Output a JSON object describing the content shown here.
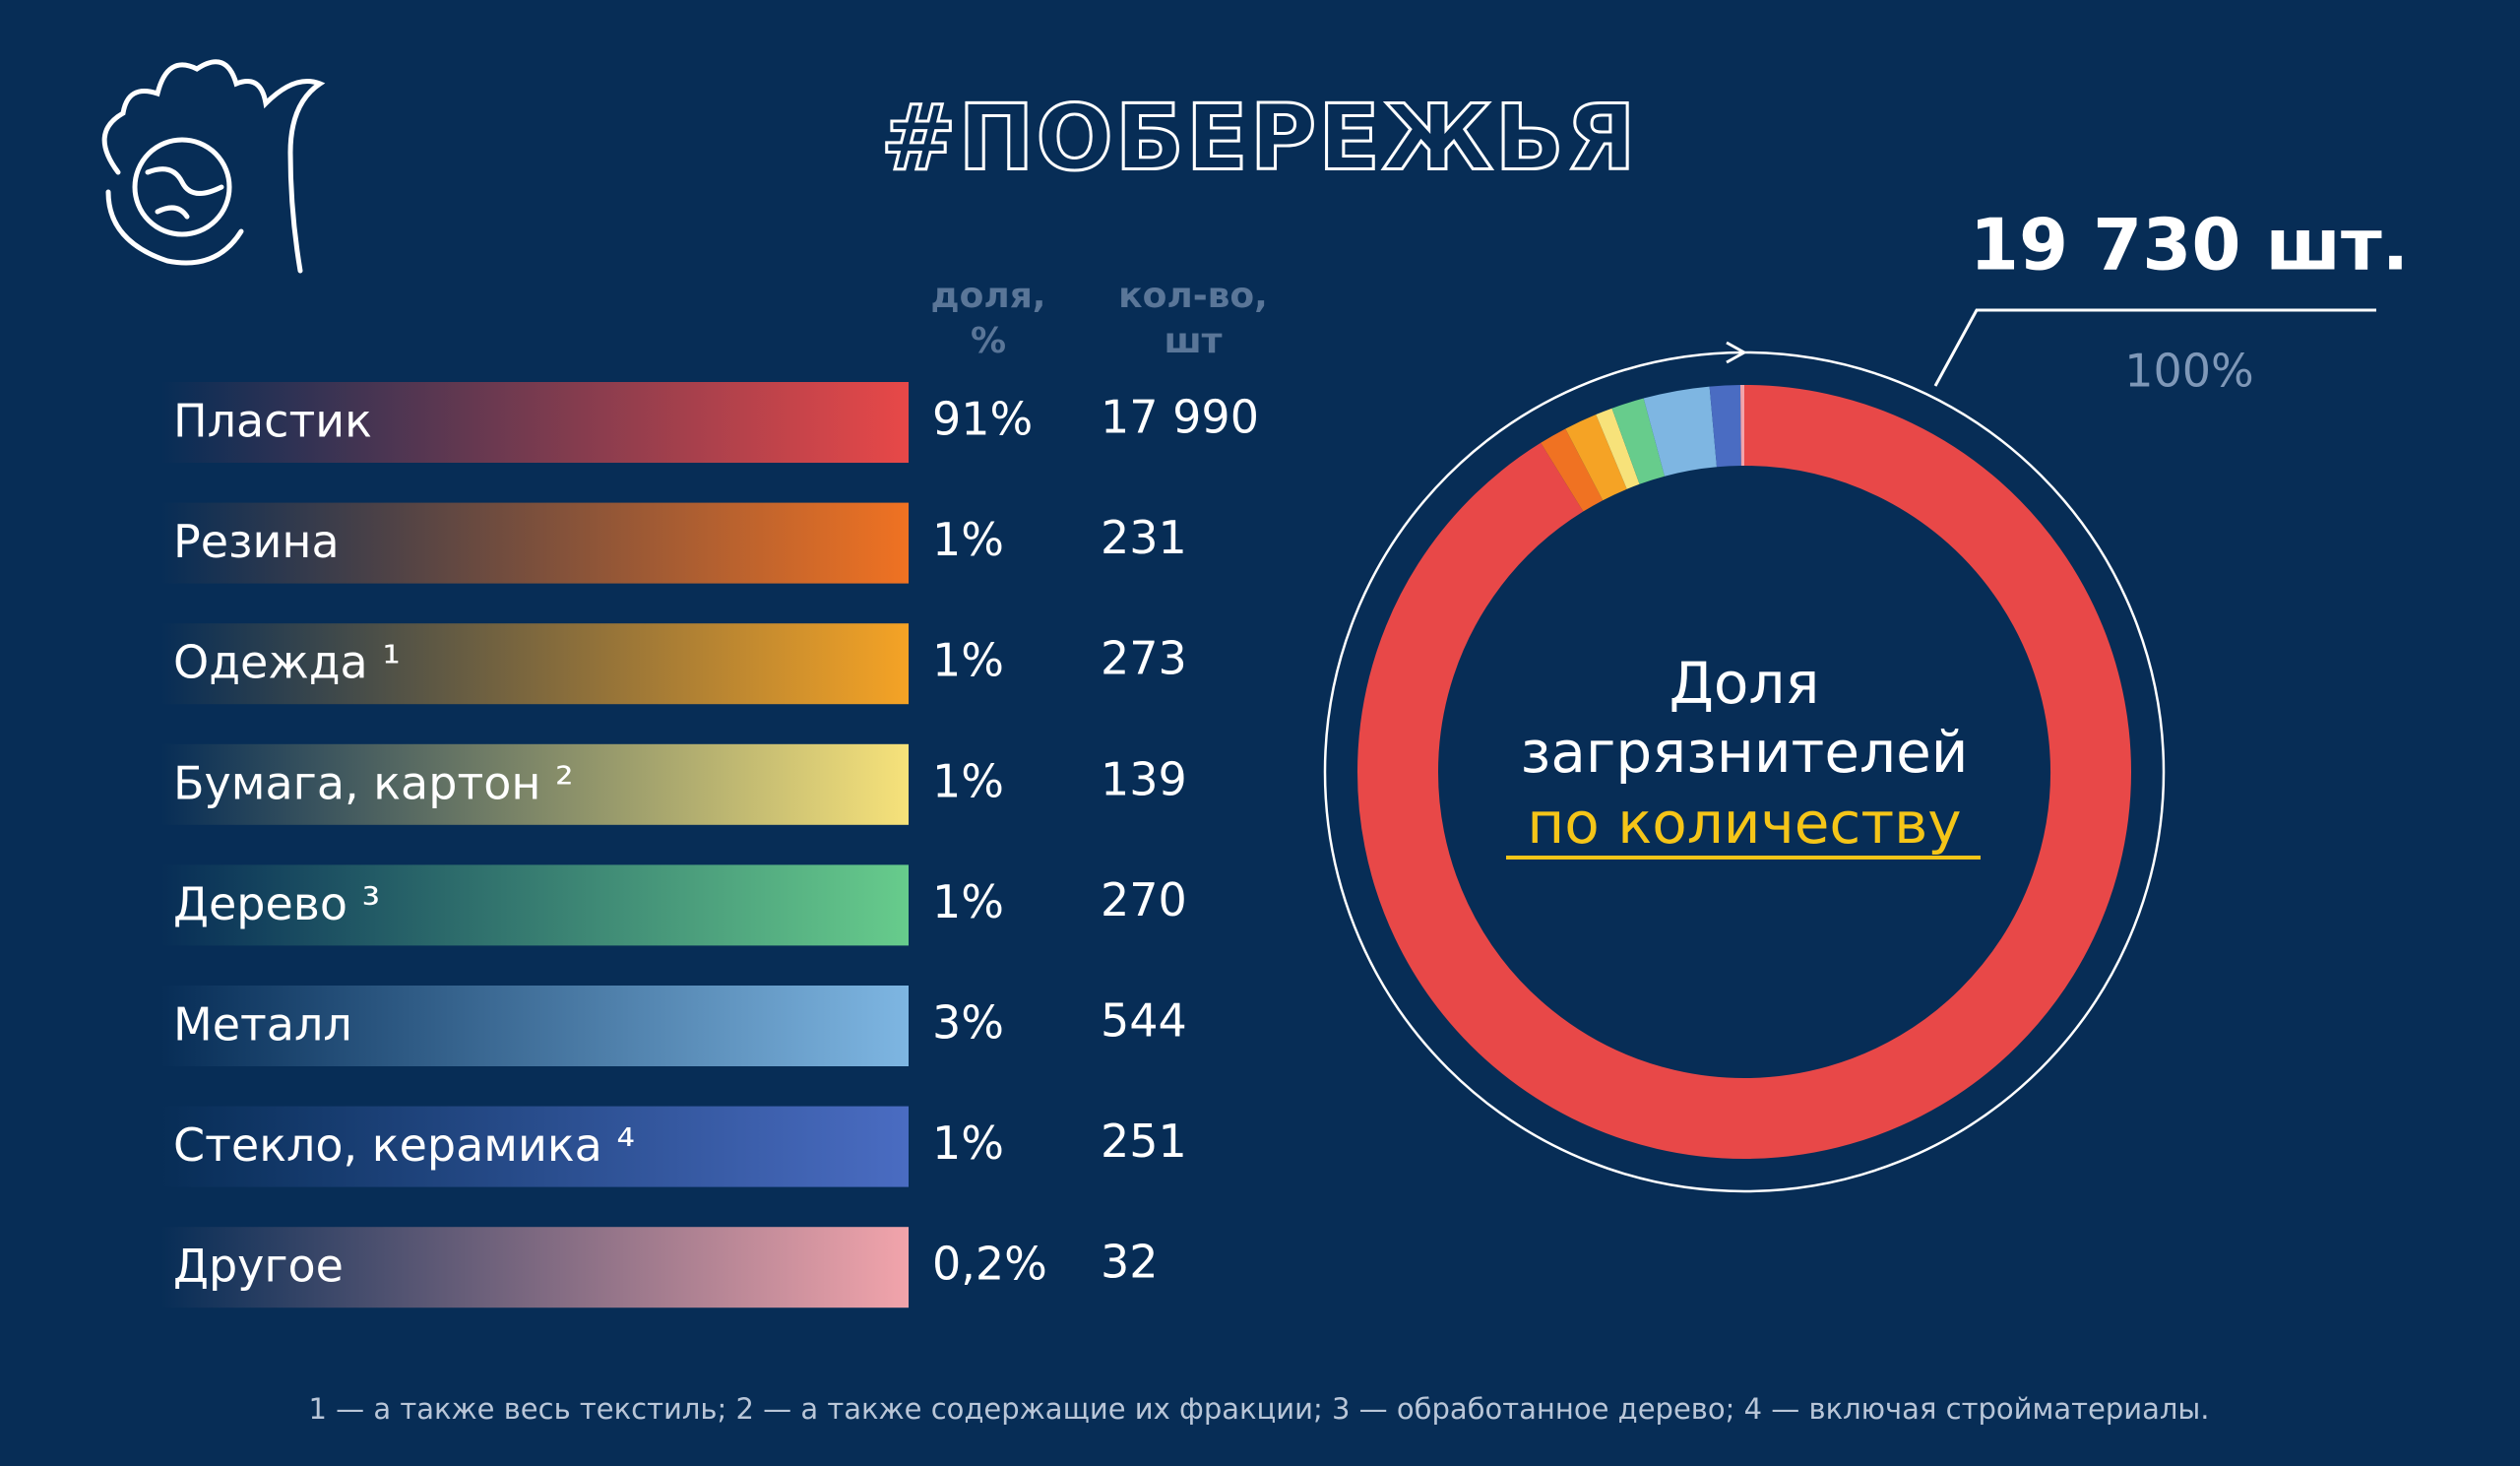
{
  "chart_data": {
    "type": "donut",
    "title": "#ПОБЕРЕЖЬЯ",
    "share_header": "доля, %",
    "count_header": "кол-во, шт",
    "categories": [
      "Пластик",
      "Резина",
      "Одежда ¹",
      "Бумага, картон ²",
      "Дерево ³",
      "Металл",
      "Стекло, керамика ⁴",
      "Другое"
    ],
    "values": [
      17990,
      231,
      273,
      139,
      270,
      544,
      251,
      32
    ],
    "value_labels": [
      "17 990",
      "231",
      "273",
      "139",
      "270",
      "544",
      "251",
      "32"
    ],
    "shares": [
      91,
      1,
      1,
      1,
      1,
      3,
      1,
      0.2
    ],
    "share_labels": [
      "91%",
      "1%",
      "1%",
      "1%",
      "1%",
      "3%",
      "1%",
      "0,2%"
    ],
    "colors": [
      "#e84848",
      "#f07222",
      "#f5a325",
      "#f7e27a",
      "#67cc8c",
      "#7eb6e2",
      "#4a6cc2",
      "#f2a4ab"
    ],
    "total_label": "19 730 шт.",
    "total_share": "100%",
    "center_text": [
      "Доля",
      "загрязнителей"
    ],
    "center_highlight": "по количеству",
    "footnote": "1 — а также весь текстиль; 2 — а также содержащие их фракции; 3 — обработанное дерево; 4 — включая стройматериалы."
  }
}
